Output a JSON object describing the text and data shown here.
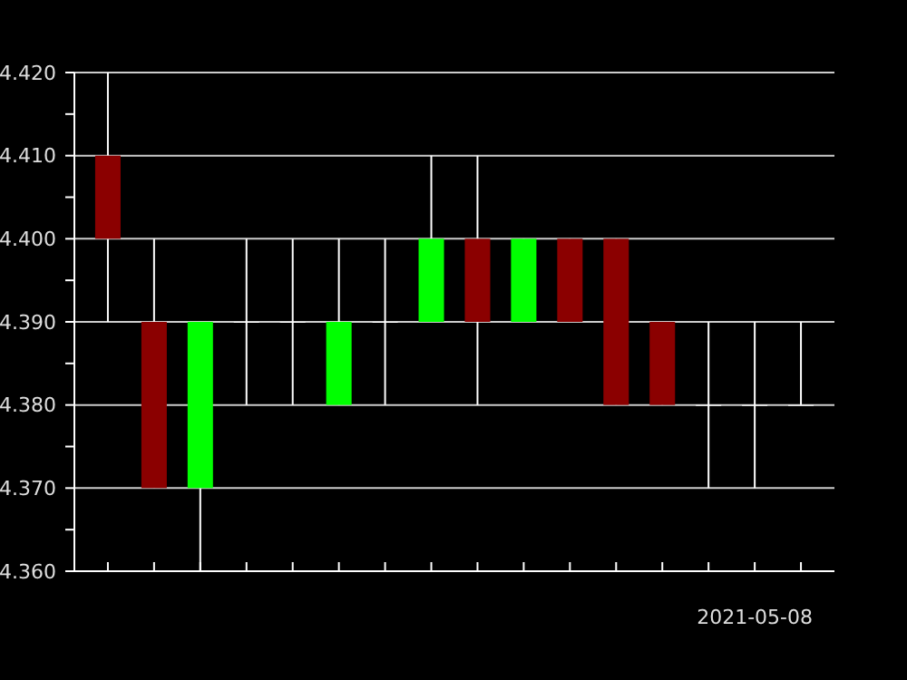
{
  "chart_data": {
    "type": "candlestick",
    "categories": [
      null,
      null,
      null,
      null,
      null,
      null,
      null,
      null,
      null,
      null,
      null,
      null,
      null,
      null,
      "2021-05-08",
      null
    ],
    "ohlc": [
      [
        4.41,
        4.42,
        4.39,
        4.4
      ],
      [
        4.39,
        4.4,
        4.37,
        4.37
      ],
      [
        4.37,
        4.39,
        4.36,
        4.39
      ],
      [
        4.39,
        4.4,
        4.38,
        4.39
      ],
      [
        4.39,
        4.4,
        4.38,
        4.39
      ],
      [
        4.38,
        4.4,
        4.38,
        4.39
      ],
      [
        4.39,
        4.4,
        4.38,
        4.39
      ],
      [
        4.39,
        4.41,
        4.39,
        4.4
      ],
      [
        4.4,
        4.41,
        4.38,
        4.39
      ],
      [
        4.39,
        4.4,
        4.39,
        4.4
      ],
      [
        4.4,
        4.4,
        4.39,
        4.39
      ],
      [
        4.4,
        4.4,
        4.38,
        4.38
      ],
      [
        4.39,
        4.39,
        4.38,
        4.38
      ],
      [
        4.38,
        4.39,
        4.37,
        4.38
      ],
      [
        4.38,
        4.39,
        4.37,
        4.38
      ],
      [
        4.38,
        4.39,
        4.38,
        4.38
      ]
    ],
    "colors": [
      "#8b0000",
      "#8b0000",
      "#00ff00",
      "#ffffff",
      "#ffffff",
      "#00ff00",
      "#ffffff",
      "#00ff00",
      "#8b0000",
      "#00ff00",
      "#8b0000",
      "#8b0000",
      "#8b0000",
      "#ffffff",
      "#ffffff",
      "#ffffff"
    ],
    "ylim": [
      4.36,
      4.42
    ],
    "yticks": [
      {
        "value": 4.36,
        "label": "4.360"
      },
      {
        "value": 4.365,
        "label": null
      },
      {
        "value": 4.37,
        "label": "4.370"
      },
      {
        "value": 4.375,
        "label": null
      },
      {
        "value": 4.38,
        "label": "4.380"
      },
      {
        "value": 4.385,
        "label": null
      },
      {
        "value": 4.39,
        "label": "4.390"
      },
      {
        "value": 4.395,
        "label": null
      },
      {
        "value": 4.4,
        "label": "4.400"
      },
      {
        "value": 4.405,
        "label": null
      },
      {
        "value": 4.41,
        "label": "4.410"
      },
      {
        "value": 4.415,
        "label": null
      },
      {
        "value": 4.42,
        "label": "4.420"
      }
    ],
    "grid": "y"
  }
}
